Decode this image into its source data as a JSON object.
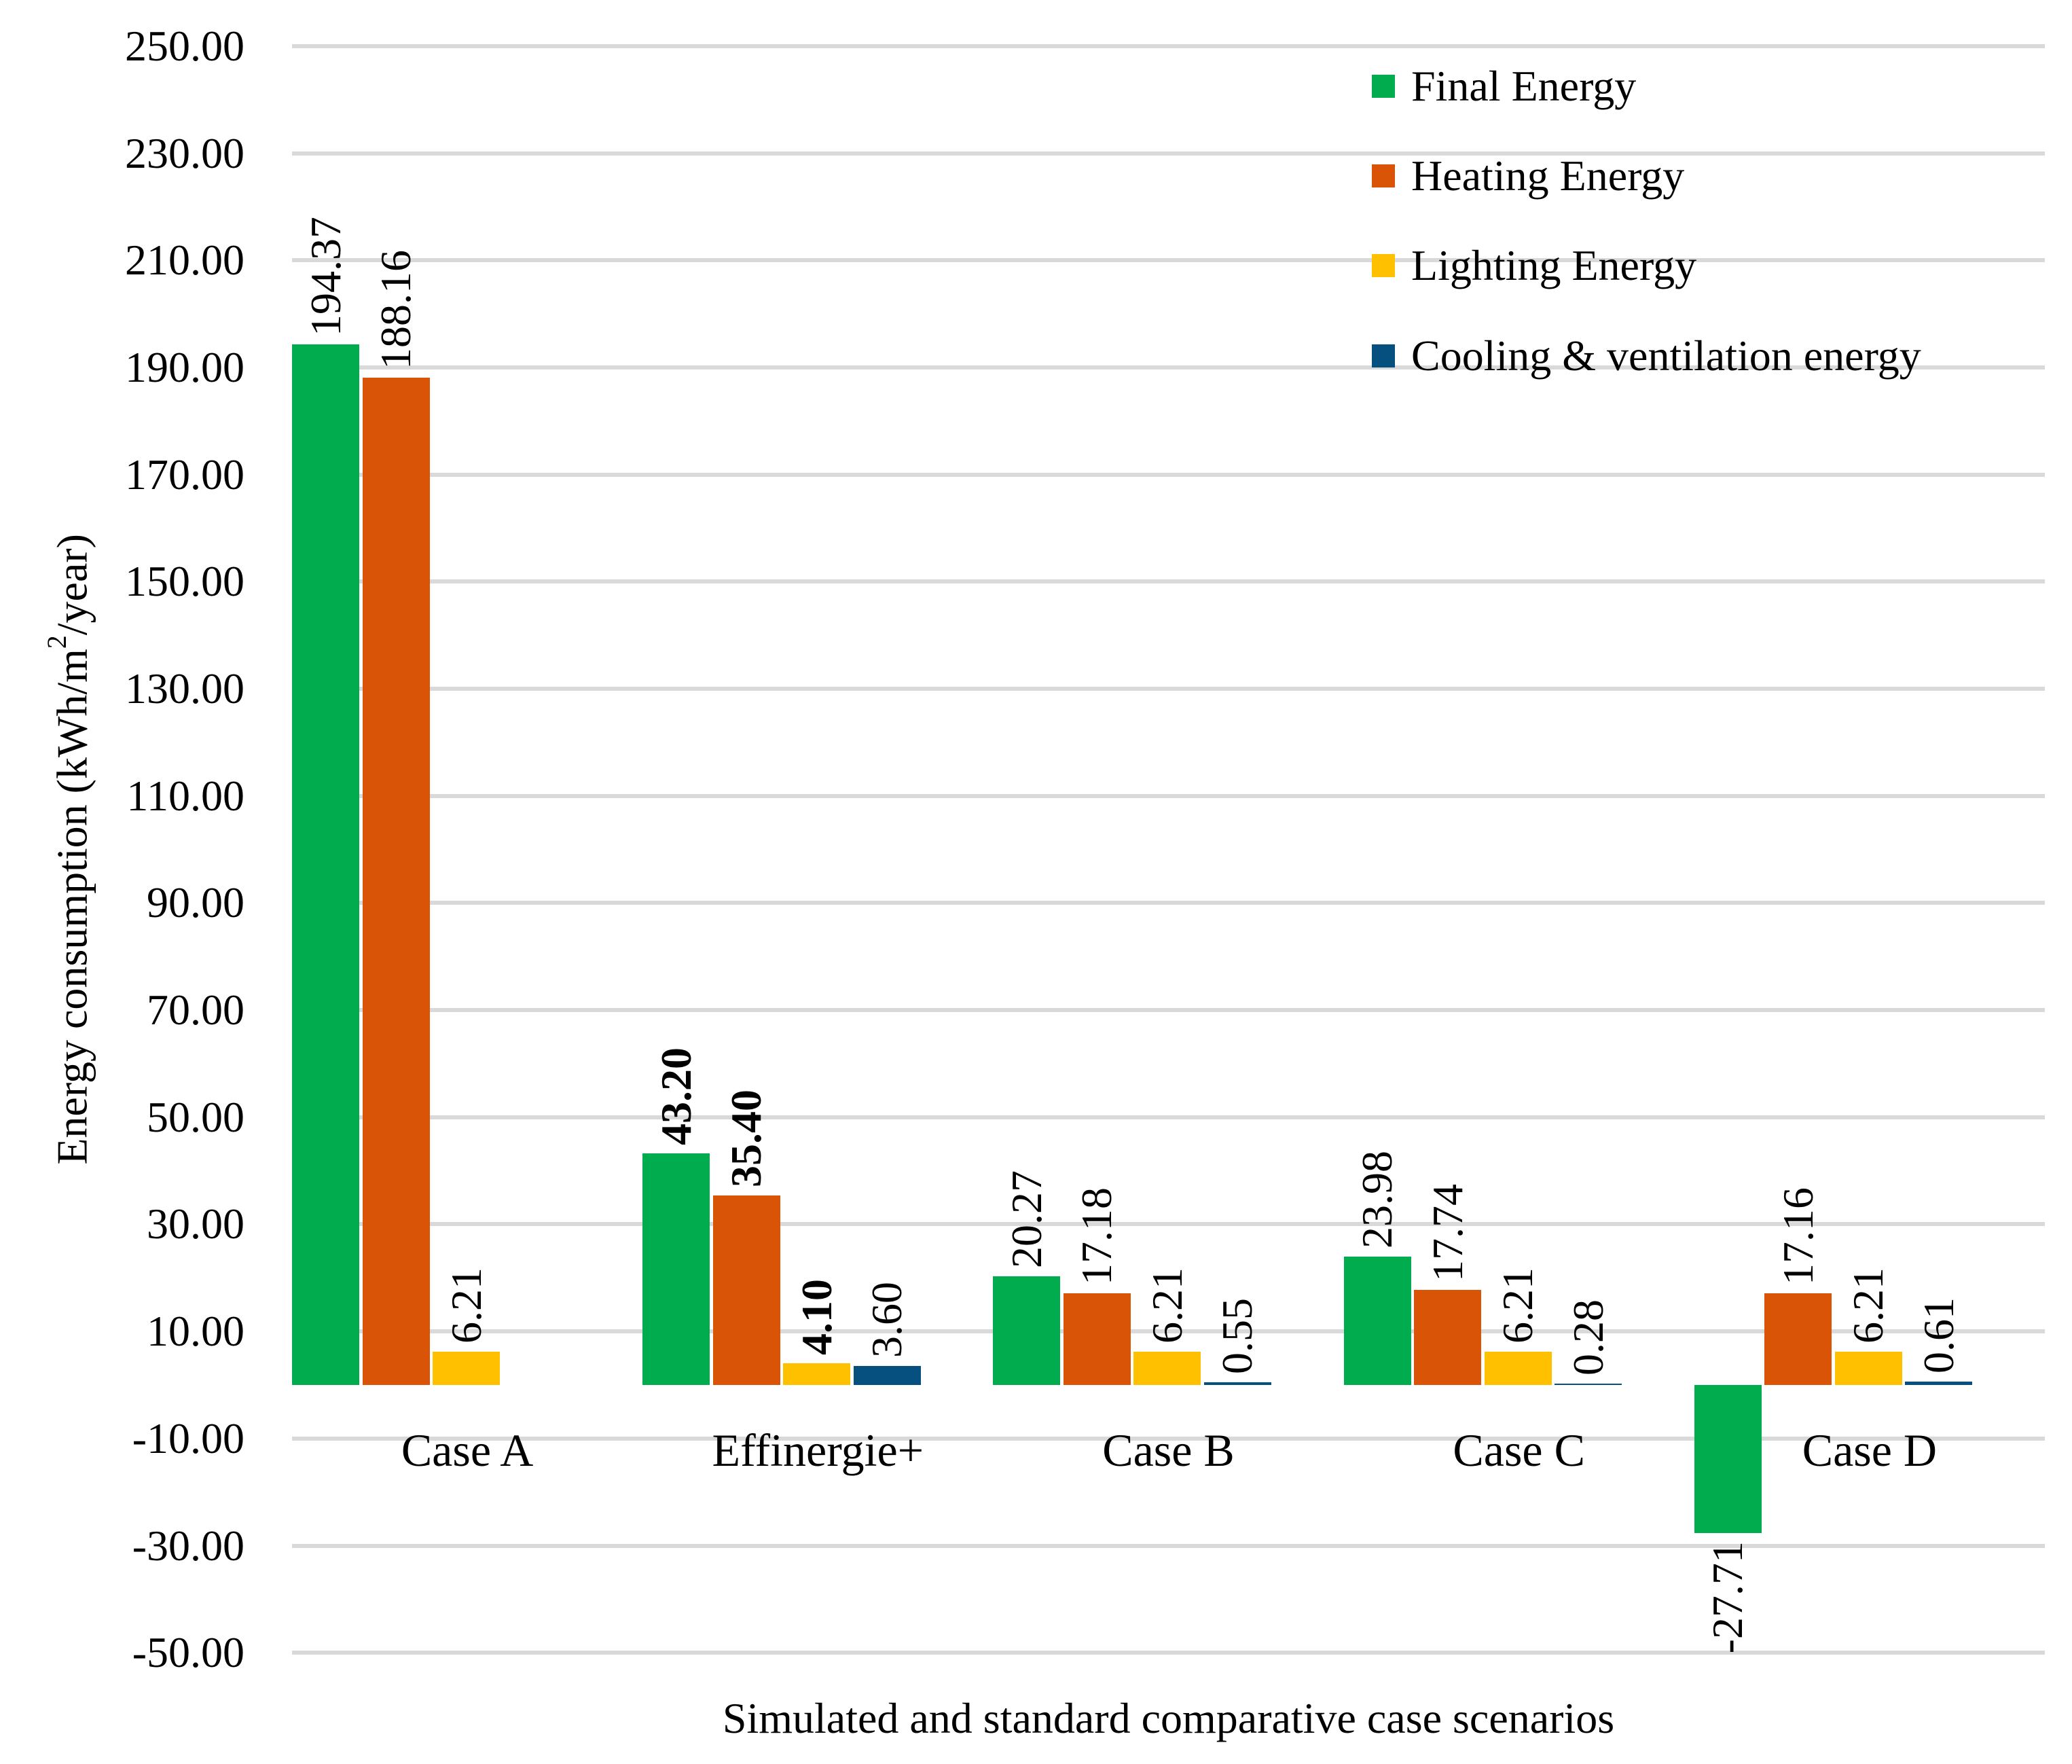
{
  "figure": {
    "background": "#FFFFFF",
    "text_color": "#000000",
    "gridline_color": "#D9D9D9"
  },
  "y_axis": {
    "title_prefix": "Energy consumption (kWh/m",
    "title_sup": "2",
    "title_suffix": "/year)",
    "min": -50,
    "max": 250,
    "ticks": [
      {
        "v": 250,
        "label": "250.00"
      },
      {
        "v": 230,
        "label": "230.00"
      },
      {
        "v": 210,
        "label": "210.00"
      },
      {
        "v": 190,
        "label": "190.00"
      },
      {
        "v": 170,
        "label": "170.00"
      },
      {
        "v": 150,
        "label": "150.00"
      },
      {
        "v": 130,
        "label": "130.00"
      },
      {
        "v": 110,
        "label": "110.00"
      },
      {
        "v": 90,
        "label": "90.00"
      },
      {
        "v": 70,
        "label": "70.00"
      },
      {
        "v": 50,
        "label": "50.00"
      },
      {
        "v": 30,
        "label": "30.00"
      },
      {
        "v": 10,
        "label": "10.00"
      },
      {
        "v": -10,
        "label": "-10.00"
      },
      {
        "v": -30,
        "label": "-30.00"
      },
      {
        "v": -50,
        "label": "-50.00"
      }
    ]
  },
  "x_axis": {
    "title": "Simulated and standard comparative case scenarios"
  },
  "legend": [
    {
      "label": "Final Energy",
      "color": "#00AC4E"
    },
    {
      "label": "Heating Energy",
      "color": "#DA5407"
    },
    {
      "label": "Lighting Energy",
      "color": "#FFC000"
    },
    {
      "label": "Cooling & ventilation energy",
      "color": "#05507F"
    }
  ],
  "chart_data": {
    "type": "bar",
    "title": "",
    "xlabel": "Simulated and standard comparative case scenarios",
    "ylabel": "Energy consumption (kWh/m2/year)",
    "ylim": [
      -50,
      250
    ],
    "grid": true,
    "legend_position": "top-right",
    "categories": [
      "Case A",
      "Effinergie+",
      "Case B",
      "Case C",
      "Case D"
    ],
    "series": [
      {
        "name": "Final Energy",
        "color": "#00AC4E",
        "values": [
          194.37,
          43.2,
          20.27,
          23.98,
          -27.71
        ],
        "labels": [
          "194.37",
          "43.20",
          "20.27",
          "23.98",
          "-27.71"
        ],
        "label_bold": [
          false,
          true,
          false,
          false,
          false
        ]
      },
      {
        "name": "Heating Energy",
        "color": "#DA5407",
        "values": [
          188.16,
          35.4,
          17.18,
          17.74,
          17.16
        ],
        "labels": [
          "188.16",
          "35.40",
          "17.18",
          "17.74",
          "17.16"
        ],
        "label_bold": [
          false,
          true,
          false,
          false,
          false
        ]
      },
      {
        "name": "Lighting Energy",
        "color": "#FFC000",
        "values": [
          6.21,
          4.1,
          6.21,
          6.21,
          6.21
        ],
        "labels": [
          "6.21",
          "4.10",
          "6.21",
          "6.21",
          "6.21"
        ],
        "label_bold": [
          false,
          true,
          false,
          false,
          false
        ]
      },
      {
        "name": "Cooling & ventilation energy",
        "color": "#05507F",
        "values": [
          null,
          3.6,
          0.55,
          0.28,
          0.61
        ],
        "labels": [
          "",
          "3.60",
          "0.55",
          "0.28",
          "0.61"
        ],
        "label_bold": [
          false,
          false,
          false,
          false,
          false
        ]
      }
    ]
  }
}
